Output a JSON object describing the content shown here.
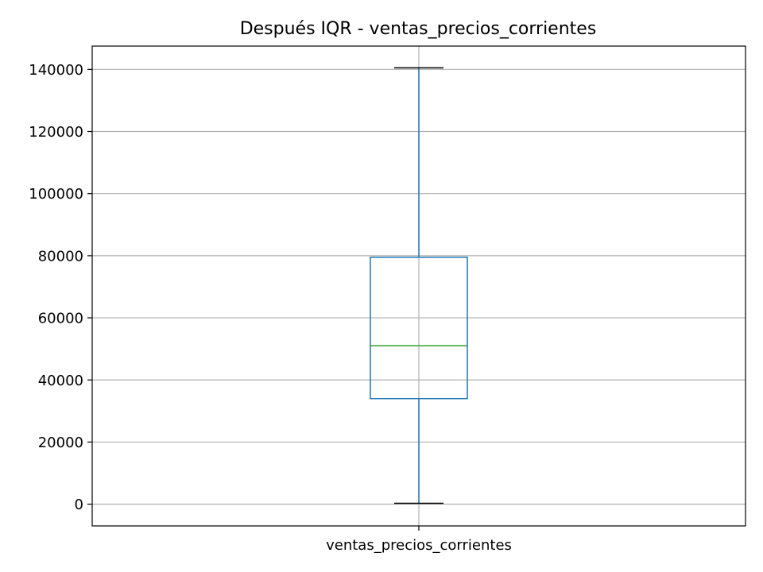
{
  "chart_data": {
    "type": "box",
    "title": "Después IQR - ventas_precios_corrientes",
    "categories": [
      "ventas_precios_corrientes"
    ],
    "box": {
      "whisker_low": 300,
      "q1": 34000,
      "median": 51000,
      "q3": 79500,
      "whisker_high": 140500
    },
    "ylim": [
      -7000,
      147500
    ],
    "yticks": [
      0,
      20000,
      40000,
      60000,
      80000,
      100000,
      120000,
      140000
    ],
    "grid": true,
    "colors": {
      "box": "#1f77b4",
      "whisker": "#1f77b4",
      "cap": "#000000",
      "median": "#2ca02c",
      "grid": "#b0b0b0"
    }
  }
}
